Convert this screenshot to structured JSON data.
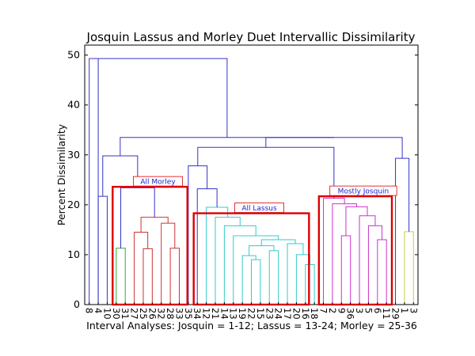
{
  "chart_data": {
    "type": "dendrogram",
    "title": "Josquin Lassus and Morley Duet Intervallic Dissimilarity",
    "xlabel": "Interval Analyses: Josquin = 1-12; Lassus = 13-24; Morley = 25-36",
    "ylabel": "Percent Dissimilarity",
    "ylim": [
      0,
      52
    ],
    "yticks": [
      0,
      10,
      20,
      30,
      40,
      50
    ],
    "leaves": [
      "8",
      "4",
      "10",
      "30",
      "31",
      "27",
      "25",
      "26",
      "32",
      "28",
      "33",
      "35",
      "34",
      "12",
      "21",
      "14",
      "13",
      "19",
      "22",
      "15",
      "23",
      "24",
      "17",
      "20",
      "16",
      "18",
      "7",
      "2",
      "9",
      "36",
      "3",
      "5",
      "6",
      "11",
      "29",
      "1",
      "3"
    ],
    "colors": {
      "root": "#3333cc",
      "morley": "#cc3333",
      "morley_single": "#33aa33",
      "lassus": "#33cccc",
      "josquin": "#cc33cc",
      "yellow": "#cccc44",
      "box": "#dd0000"
    },
    "links": [
      {
        "x": [
          0,
          1
        ],
        "y": [
          0,
          0
        ],
        "h": 49.3,
        "c": "root"
      },
      {
        "x": [
          1,
          2
        ],
        "y": [
          0,
          0
        ],
        "h": 21.7,
        "c": "root"
      },
      {
        "x": [
          3,
          4
        ],
        "y": [
          0,
          0
        ],
        "h": 11.3,
        "c": "morley_single"
      },
      {
        "x": [
          6,
          7
        ],
        "y": [
          0,
          0
        ],
        "h": 11.2,
        "c": "morley"
      },
      {
        "x": [
          5,
          6.5
        ],
        "y": [
          0,
          11.2
        ],
        "h": 14.5,
        "c": "morley"
      },
      {
        "x": [
          9,
          10
        ],
        "y": [
          0,
          0
        ],
        "h": 11.3,
        "c": "morley"
      },
      {
        "x": [
          8,
          9.5
        ],
        "y": [
          0,
          11.3
        ],
        "h": 16.3,
        "c": "morley"
      },
      {
        "x": [
          5.75,
          8.75
        ],
        "y": [
          14.5,
          16.3
        ],
        "h": 17.5,
        "c": "morley"
      },
      {
        "x": [
          3.5,
          7.25
        ],
        "y": [
          11.3,
          17.5
        ],
        "h": 23.4,
        "c": "root"
      },
      {
        "x": [
          1.5,
          5.375
        ],
        "y": [
          21.7,
          23.4
        ],
        "h": 29.8,
        "c": "root"
      },
      {
        "x": [
          18,
          19
        ],
        "y": [
          0,
          0
        ],
        "h": 9.0,
        "c": "lassus"
      },
      {
        "x": [
          17,
          18.5
        ],
        "y": [
          0,
          9.0
        ],
        "h": 9.8,
        "c": "lassus"
      },
      {
        "x": [
          20,
          21
        ],
        "y": [
          0,
          0
        ],
        "h": 10.8,
        "c": "lassus"
      },
      {
        "x": [
          17.75,
          20.5
        ],
        "y": [
          9.8,
          10.8
        ],
        "h": 11.8,
        "c": "lassus"
      },
      {
        "x": [
          24,
          25
        ],
        "y": [
          0,
          0
        ],
        "h": 8.0,
        "c": "lassus"
      },
      {
        "x": [
          23,
          24.5
        ],
        "y": [
          0,
          8.0
        ],
        "h": 10.0,
        "c": "lassus"
      },
      {
        "x": [
          22,
          23.75
        ],
        "y": [
          0,
          10.0
        ],
        "h": 12.2,
        "c": "lassus"
      },
      {
        "x": [
          19.125,
          22.875
        ],
        "y": [
          11.8,
          12.2
        ],
        "h": 13.0,
        "c": "lassus"
      },
      {
        "x": [
          16,
          21
        ],
        "y": [
          0,
          13.0
        ],
        "h": 13.8,
        "c": "lassus"
      },
      {
        "x": [
          15,
          18.5
        ],
        "y": [
          0,
          13.8
        ],
        "h": 15.8,
        "c": "lassus"
      },
      {
        "x": [
          14,
          16.75
        ],
        "y": [
          0,
          15.8
        ],
        "h": 17.5,
        "c": "lassus"
      },
      {
        "x": [
          13,
          15.375
        ],
        "y": [
          0,
          17.5
        ],
        "h": 19.5,
        "c": "lassus"
      },
      {
        "x": [
          12,
          14.1875
        ],
        "y": [
          0,
          19.5
        ],
        "h": 23.2,
        "c": "root"
      },
      {
        "x": [
          11,
          13.09
        ],
        "y": [
          0,
          23.2
        ],
        "h": 27.8,
        "c": "root"
      },
      {
        "x": [
          32,
          33
        ],
        "y": [
          0,
          0
        ],
        "h": 13.0,
        "c": "josquin"
      },
      {
        "x": [
          31,
          32.5
        ],
        "y": [
          0,
          13.0
        ],
        "h": 15.8,
        "c": "josquin"
      },
      {
        "x": [
          30,
          31.75
        ],
        "y": [
          0,
          15.8
        ],
        "h": 17.8,
        "c": "josquin"
      },
      {
        "x": [
          28,
          29
        ],
        "y": [
          0,
          0
        ],
        "h": 13.8,
        "c": "josquin"
      },
      {
        "x": [
          28.5,
          30.875
        ],
        "y": [
          13.8,
          17.8
        ],
        "h": 19.6,
        "c": "josquin"
      },
      {
        "x": [
          27,
          29.69
        ],
        "y": [
          0,
          19.6
        ],
        "h": 20.2,
        "c": "josquin"
      },
      {
        "x": [
          26,
          28.34
        ],
        "y": [
          0,
          20.2
        ],
        "h": 21.3,
        "c": "josquin"
      },
      {
        "x": [
          12.05,
          27.17
        ],
        "y": [
          27.8,
          21.3
        ],
        "h": 31.5,
        "c": "root"
      },
      {
        "x": [
          35,
          36
        ],
        "y": [
          0,
          0
        ],
        "h": 14.6,
        "c": "yellow"
      },
      {
        "x": [
          34,
          35.5
        ],
        "y": [
          0,
          14.6
        ],
        "h": 29.3,
        "c": "root"
      },
      {
        "x": [
          19.61,
          34.75
        ],
        "y": [
          31.5,
          29.3
        ],
        "h": 33.5,
        "c": "root"
      },
      {
        "x": [
          3.44,
          27.18
        ],
        "y": [
          29.8,
          33.5
        ],
        "h": 33.5,
        "c": "root"
      },
      {
        "x": [
          0.5,
          15.31
        ],
        "y": [
          49.3,
          33.5
        ],
        "h": 49.3,
        "c": "root"
      }
    ],
    "boxes": [
      {
        "label": "All Morley",
        "x": [
          2.6,
          10.9
        ],
        "y": [
          0,
          23.6
        ]
      },
      {
        "label": "All Lassus",
        "x": [
          11.6,
          24.4
        ],
        "y": [
          0,
          18.3
        ]
      },
      {
        "label": "Mostly Josquin",
        "x": [
          25.5,
          33.6
        ],
        "y": [
          0,
          21.7
        ]
      }
    ]
  }
}
